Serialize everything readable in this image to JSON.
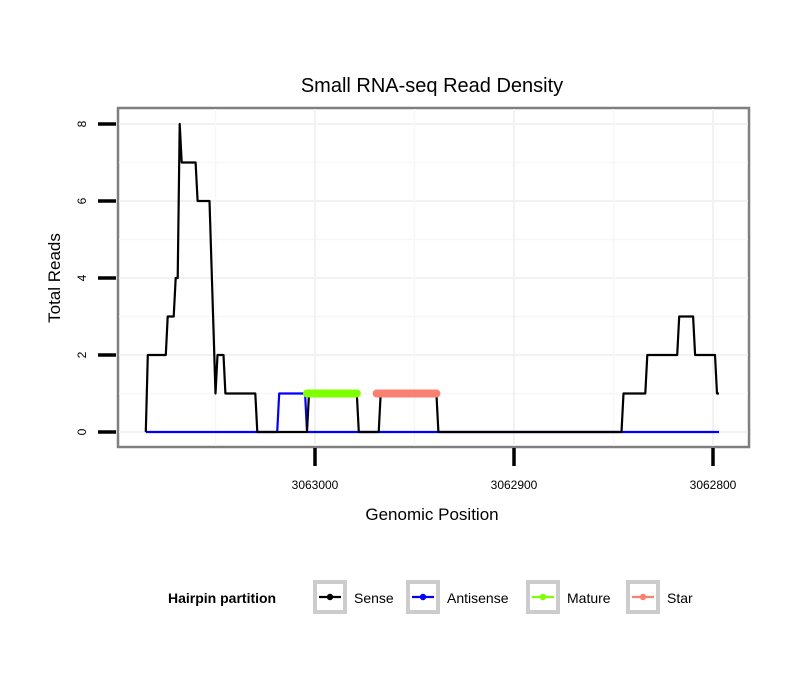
{
  "chart_data": {
    "type": "line",
    "title": "Small RNA-seq Read Density",
    "xlabel": "Genomic Position",
    "ylabel": "Total Reads",
    "x_reversed": true,
    "xlim": [
      3063085,
      3062797
    ],
    "ylim": [
      0,
      8
    ],
    "x_ticks": [
      3063000,
      3062900,
      3062800
    ],
    "x_tick_labels": [
      "3063000",
      "3062900",
      "3062800"
    ],
    "y_ticks": [
      0,
      2,
      4,
      6,
      8
    ],
    "y_tick_labels": [
      "0",
      "2",
      "4",
      "6",
      "8"
    ],
    "grid": true,
    "legend": {
      "title": "Hairpin partition",
      "position": "bottom",
      "entries": [
        {
          "name": "Sense",
          "color": "#000000"
        },
        {
          "name": "Antisense",
          "color": "#0000ff"
        },
        {
          "name": "Mature",
          "color": "#7fff00"
        },
        {
          "name": "Star",
          "color": "#fa8072"
        }
      ]
    },
    "series": [
      {
        "name": "Sense",
        "color": "#000000",
        "points": [
          [
            3063085,
            0
          ],
          [
            3063084,
            2
          ],
          [
            3063075,
            2
          ],
          [
            3063074,
            3
          ],
          [
            3063071,
            3
          ],
          [
            3063070,
            4
          ],
          [
            3063069,
            4
          ],
          [
            3063068,
            8
          ],
          [
            3063067,
            7
          ],
          [
            3063060,
            7
          ],
          [
            3063059,
            6
          ],
          [
            3063053,
            6
          ],
          [
            3063050,
            1
          ],
          [
            3063049,
            2
          ],
          [
            3063046,
            2
          ],
          [
            3063045,
            1
          ],
          [
            3063030,
            1
          ],
          [
            3063029,
            0
          ],
          [
            3063004,
            0
          ],
          [
            3063003,
            1
          ],
          [
            3062979,
            1
          ],
          [
            3062978,
            0
          ],
          [
            3062968,
            0
          ],
          [
            3062967,
            1
          ],
          [
            3062939,
            1
          ],
          [
            3062938,
            0
          ],
          [
            3062846,
            0
          ],
          [
            3062845,
            1
          ],
          [
            3062834,
            1
          ],
          [
            3062833,
            2
          ],
          [
            3062818,
            2
          ],
          [
            3062817,
            3
          ],
          [
            3062810,
            3
          ],
          [
            3062809,
            2
          ],
          [
            3062799,
            2
          ],
          [
            3062798,
            1
          ],
          [
            3062797,
            1
          ]
        ]
      },
      {
        "name": "Antisense",
        "color": "#0000ff",
        "points": [
          [
            3063085,
            0
          ],
          [
            3063030,
            0
          ],
          [
            3063019,
            0
          ],
          [
            3063018,
            1
          ],
          [
            3063005,
            1
          ],
          [
            3063004,
            0
          ],
          [
            3062797,
            0
          ]
        ]
      },
      {
        "name": "Mature",
        "color": "#7fff00",
        "points": [
          [
            3063004,
            1
          ],
          [
            3062979,
            1
          ]
        ]
      },
      {
        "name": "Star",
        "color": "#fa8072",
        "points": [
          [
            3062969,
            1
          ],
          [
            3062939,
            1
          ]
        ]
      }
    ]
  }
}
